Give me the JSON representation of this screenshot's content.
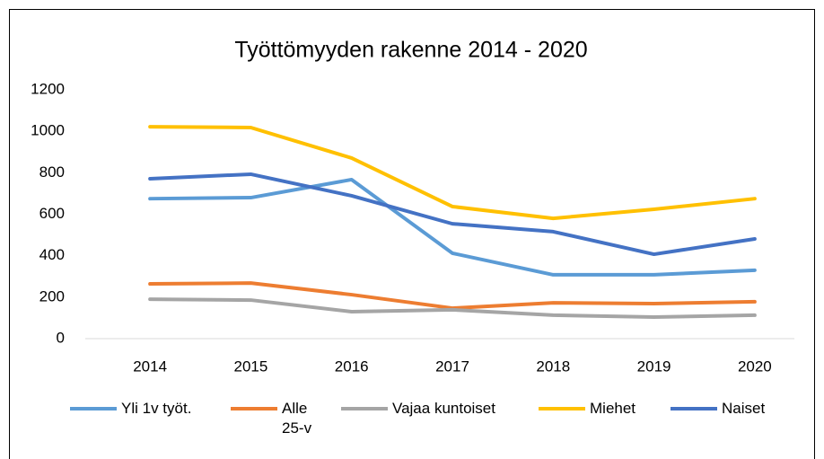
{
  "chart_data": {
    "type": "line",
    "title": "Työttömyyden rakenne 2014 - 2020",
    "categories": [
      "2014",
      "2015",
      "2016",
      "2017",
      "2018",
      "2019",
      "2020"
    ],
    "series": [
      {
        "name": "Yli 1v työt.",
        "color": "#5b9bd5",
        "values": [
          675,
          680,
          767,
          412,
          308,
          308,
          330
        ]
      },
      {
        "name": "Alle 25-v",
        "color": "#ed7d31",
        "values": [
          264,
          268,
          212,
          147,
          173,
          169,
          178
        ]
      },
      {
        "name": "Vajaa kuntoiset",
        "color": "#a5a5a5",
        "values": [
          190,
          186,
          130,
          139,
          113,
          104,
          113
        ]
      },
      {
        "name": "Miehet",
        "color": "#ffc000",
        "values": [
          1022,
          1018,
          871,
          637,
          580,
          624,
          675
        ]
      },
      {
        "name": "Naiset",
        "color": "#4472c4",
        "values": [
          771,
          793,
          689,
          554,
          516,
          407,
          481
        ]
      }
    ],
    "ylim": [
      0,
      1200
    ],
    "yticks": [
      0,
      200,
      400,
      600,
      800,
      1000,
      1200
    ],
    "grid": false
  }
}
